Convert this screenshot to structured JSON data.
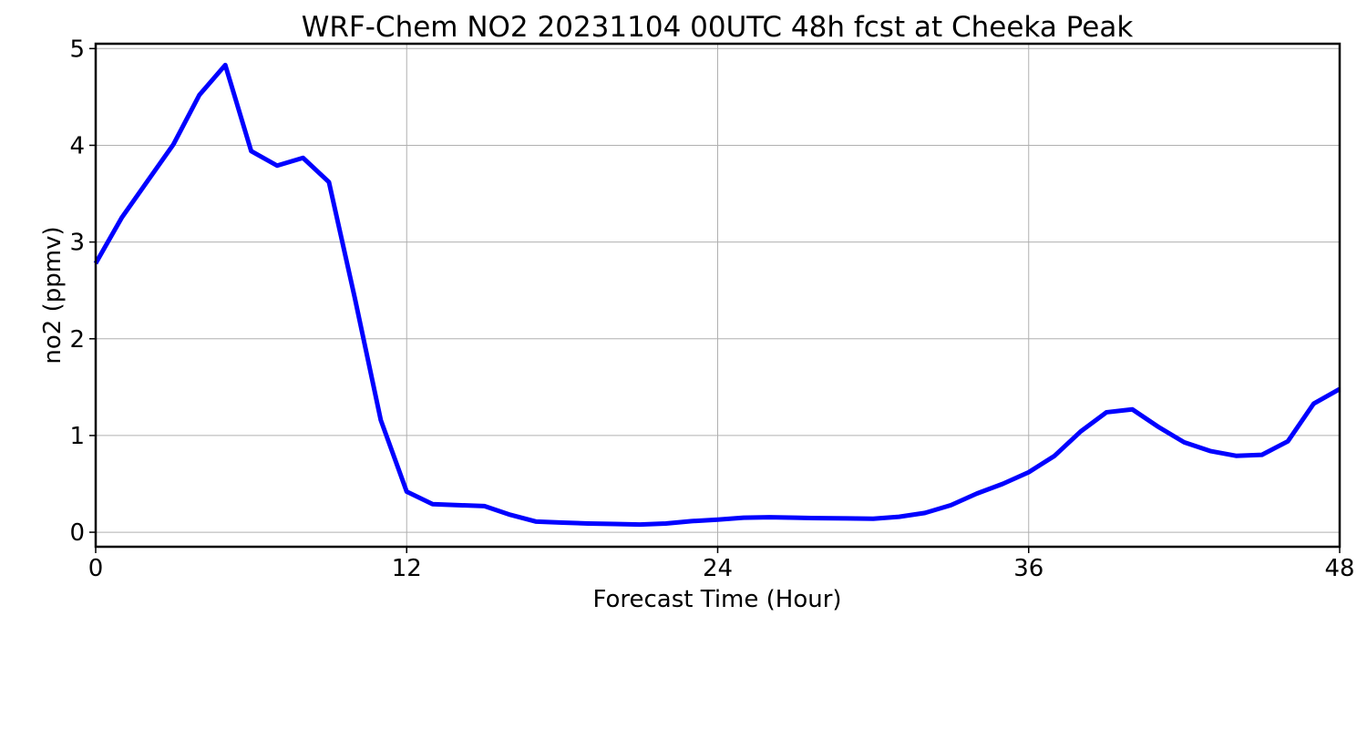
{
  "chart_data": {
    "type": "line",
    "title": "WRF-Chem NO2  20231104 00UTC 48h fcst at Cheeka Peak",
    "xlabel": "Forecast Time (Hour)",
    "ylabel": "no2  (ppmv)",
    "xlim": [
      0,
      48
    ],
    "ylim": [
      -0.15,
      5.05
    ],
    "x_ticks": [
      0,
      12,
      24,
      36,
      48
    ],
    "y_ticks": [
      0,
      1,
      2,
      3,
      4,
      5
    ],
    "grid": true,
    "series": [
      {
        "color": "#0000ff",
        "x": [
          0,
          1,
          2,
          3,
          4,
          5,
          6,
          7,
          8,
          9,
          10,
          11,
          12,
          13,
          14,
          15,
          16,
          17,
          18,
          19,
          20,
          21,
          22,
          23,
          24,
          25,
          26,
          27,
          28,
          29,
          30,
          31,
          32,
          33,
          34,
          35,
          36,
          37,
          38,
          39,
          40,
          41,
          42,
          43,
          44,
          45,
          46,
          47,
          48
        ],
        "values": [
          2.78,
          3.25,
          3.63,
          4.01,
          4.52,
          4.83,
          3.94,
          3.79,
          3.87,
          3.62,
          2.42,
          1.16,
          0.42,
          0.29,
          0.28,
          0.27,
          0.18,
          0.11,
          0.1,
          0.09,
          0.085,
          0.08,
          0.09,
          0.115,
          0.13,
          0.15,
          0.155,
          0.15,
          0.145,
          0.143,
          0.14,
          0.16,
          0.2,
          0.28,
          0.4,
          0.5,
          0.62,
          0.79,
          1.04,
          1.24,
          1.27,
          1.09,
          0.93,
          0.84,
          0.79,
          0.8,
          0.94,
          1.33,
          1.48
        ]
      }
    ]
  }
}
